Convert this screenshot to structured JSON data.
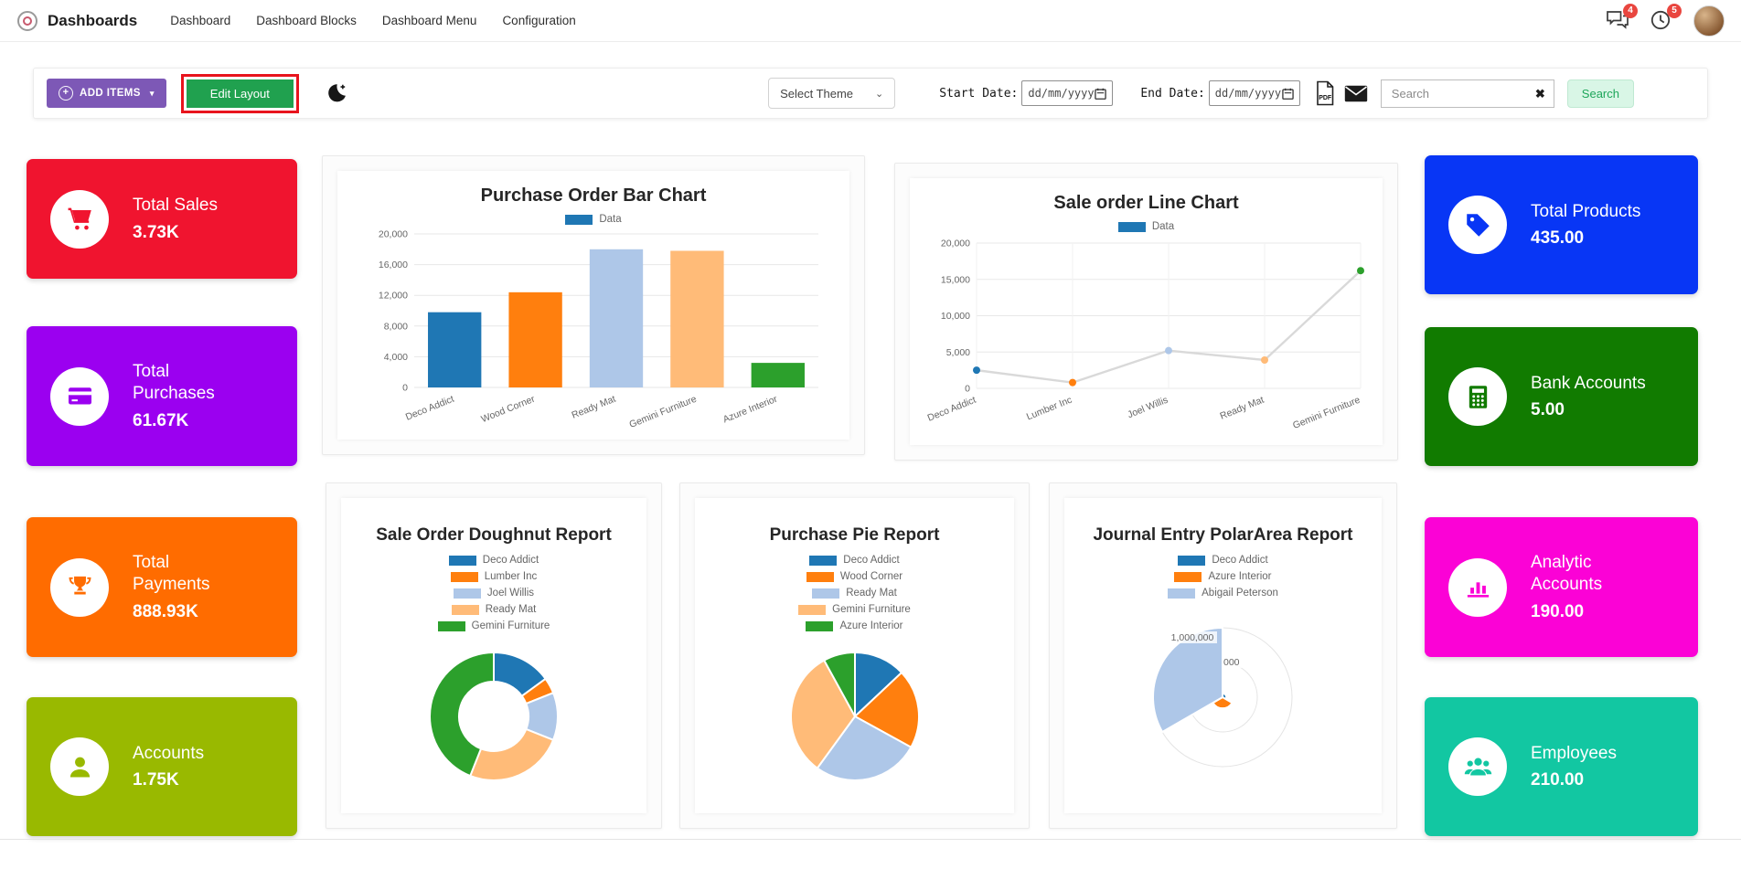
{
  "nav": {
    "app_name": "Dashboards",
    "items": [
      {
        "label": "Dashboard"
      },
      {
        "label": "Dashboard Blocks"
      },
      {
        "label": "Dashboard Menu"
      },
      {
        "label": "Configuration"
      }
    ],
    "messages_badge": "4",
    "activities_badge": "5"
  },
  "toolbar": {
    "add_items_label": "ADD ITEMS",
    "edit_layout_label": "Edit Layout",
    "select_theme_label": "Select Theme",
    "start_date_label": "Start Date:",
    "end_date_label": "End Date:",
    "date_placeholder": "dd/mm/yyyy",
    "search_placeholder": "Search",
    "search_button_label": "Search"
  },
  "icons": {
    "plus": "+",
    "caret_down": "▾",
    "chevron_down": "⌄",
    "clear": "✖"
  },
  "kpi_left": [
    {
      "title": "Total Sales",
      "value": "3.73K",
      "color": "#f0142f",
      "icon": "cart-icon"
    },
    {
      "title": "Total Purchases",
      "value": "61.67K",
      "color": "#9b00f0",
      "icon": "credit-card-icon"
    },
    {
      "title": "Total Payments",
      "value": "888.93K",
      "color": "#ff6c00",
      "icon": "trophy-icon"
    },
    {
      "title": "Accounts",
      "value": "1.75K",
      "color": "#99b900",
      "icon": "user-icon"
    }
  ],
  "kpi_right": [
    {
      "title": "Total Products",
      "value": "435.00",
      "color": "#0836f5",
      "icon": "tag-icon"
    },
    {
      "title": "Bank Accounts",
      "value": "5.00",
      "color": "#117b00",
      "icon": "calculator-icon"
    },
    {
      "title": "Analytic Accounts",
      "value": "190.00",
      "color": "#fb02d6",
      "icon": "bar-chart-icon"
    },
    {
      "title": "Employees",
      "value": "210.00",
      "color": "#12c7a2",
      "icon": "users-icon"
    }
  ],
  "chart_data": [
    {
      "type": "bar",
      "title": "Purchase Order Bar Chart",
      "legend": [
        "Data"
      ],
      "legend_color": "#1f77b4",
      "categories": [
        "Deco Addict",
        "Wood Corner",
        "Ready Mat",
        "Gemini Furniture",
        "Azure Interior"
      ],
      "values": [
        9800,
        12400,
        18000,
        17800,
        3200
      ],
      "colors": [
        "#1f77b4",
        "#ff7f0e",
        "#aec7e8",
        "#ffbb78",
        "#2ca02c"
      ],
      "ylim": [
        0,
        20000
      ],
      "yticks": [
        0,
        4000,
        8000,
        12000,
        16000,
        20000
      ],
      "grid": true
    },
    {
      "type": "line",
      "title": "Sale order Line Chart",
      "legend": [
        "Data"
      ],
      "legend_color": "#1f77b4",
      "categories": [
        "Deco Addict",
        "Lumber Inc",
        "Joel Willis",
        "Ready Mat",
        "Gemini Furniture"
      ],
      "values": [
        2500,
        800,
        5200,
        3900,
        16200
      ],
      "point_colors": [
        "#1f77b4",
        "#ff7f0e",
        "#aec7e8",
        "#ffbb78",
        "#2ca02c"
      ],
      "line_color": "#d9d9d9",
      "ylim": [
        0,
        20000
      ],
      "yticks": [
        0,
        5000,
        10000,
        15000,
        20000
      ],
      "grid": true
    },
    {
      "type": "doughnut",
      "title": "Sale Order Doughnut Report",
      "labels": [
        "Deco Addict",
        "Lumber Inc",
        "Joel Willis",
        "Ready Mat",
        "Gemini Furniture"
      ],
      "values": [
        15,
        4,
        12,
        25,
        44
      ],
      "colors": [
        "#1f77b4",
        "#ff7f0e",
        "#aec7e8",
        "#ffbb78",
        "#2ca02c"
      ],
      "legend_position": "top"
    },
    {
      "type": "pie",
      "title": "Purchase Pie Report",
      "labels": [
        "Deco Addict",
        "Wood Corner",
        "Ready Mat",
        "Gemini Furniture",
        "Azure Interior"
      ],
      "values": [
        13,
        20,
        27,
        32,
        8
      ],
      "colors": [
        "#1f77b4",
        "#ff7f0e",
        "#aec7e8",
        "#ffbb78",
        "#2ca02c"
      ],
      "legend_position": "top"
    },
    {
      "type": "polarArea",
      "title": "Journal Entry PolarArea Report",
      "labels": [
        "Deco Addict",
        "Azure Interior",
        "Abigail Peterson"
      ],
      "values": [
        55000,
        160000,
        1000000
      ],
      "colors": [
        "#1f77b4",
        "#ff7f0e",
        "#aec7e8"
      ],
      "max": 1000000,
      "tick_labels": [
        "1,000,000",
        "000"
      ],
      "legend_position": "top"
    }
  ]
}
